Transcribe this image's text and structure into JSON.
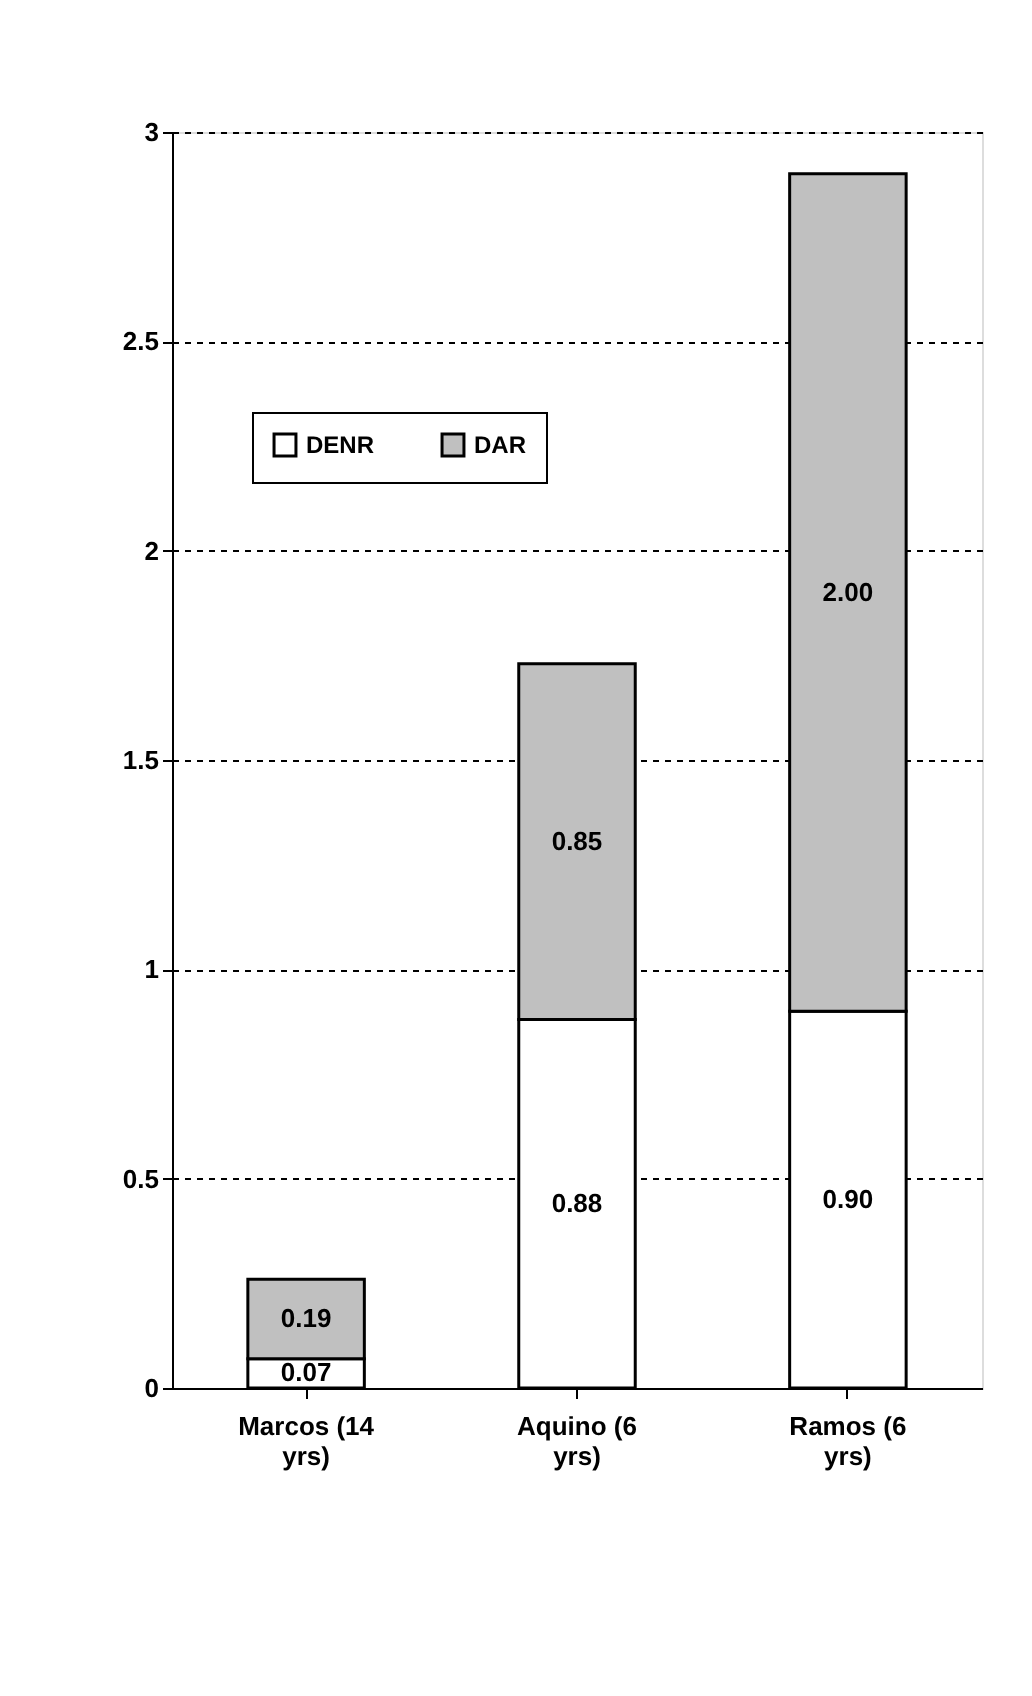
{
  "chart_data": {
    "type": "bar",
    "stacked": true,
    "categories": [
      "Marcos (14 yrs)",
      "Aquino (6 yrs)",
      "Ramos (6 yrs)"
    ],
    "series": [
      {
        "name": "DENR",
        "color": "#ffffff",
        "values": [
          0.07,
          0.88,
          0.9
        ],
        "value_labels": [
          "0.07",
          "0.88",
          "0.90"
        ]
      },
      {
        "name": "DAR",
        "color": "#c0c0c0",
        "values": [
          0.19,
          0.85,
          2.0
        ],
        "value_labels": [
          "0.19",
          "0.85",
          "2.00"
        ]
      }
    ],
    "ylim": [
      0,
      3
    ],
    "yticks": [
      0,
      0.5,
      1,
      1.5,
      2,
      2.5,
      3
    ],
    "grid": "y",
    "line_style": "dotted",
    "legend": "top left"
  }
}
